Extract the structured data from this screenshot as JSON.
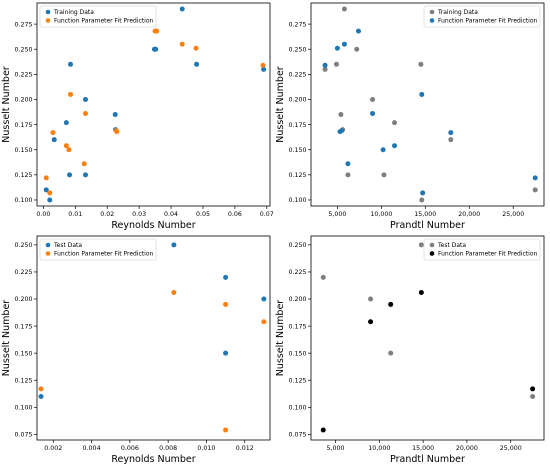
{
  "chart_data": [
    {
      "type": "scatter",
      "xlabel": "Reynolds Number",
      "ylabel": "Nusselt Number",
      "xlim": [
        -0.002,
        0.071
      ],
      "ylim": [
        0.094,
        0.296
      ],
      "xticks": [
        0.0,
        0.01,
        0.02,
        0.03,
        0.04,
        0.05,
        0.06,
        0.07
      ],
      "xtick_labels": [
        "0.00",
        "0.01",
        "0.02",
        "0.03",
        "0.04",
        "0.05",
        "0.06",
        "0.07"
      ],
      "yticks": [
        0.1,
        0.125,
        0.15,
        0.175,
        0.2,
        0.225,
        0.25,
        0.275
      ],
      "ytick_labels": [
        "0.100",
        "0.125",
        "0.150",
        "0.175",
        "0.200",
        "0.225",
        "0.250",
        "0.275"
      ],
      "legend": "top-left",
      "series": [
        {
          "name": "Training Data",
          "color": "#1f77b4",
          "x": [
            0.0009,
            0.002,
            0.0034,
            0.0072,
            0.0082,
            0.0085,
            0.0132,
            0.0132,
            0.0225,
            0.0226,
            0.0348,
            0.0352,
            0.0435,
            0.048,
            0.069
          ],
          "y": [
            0.11,
            0.1,
            0.16,
            0.177,
            0.125,
            0.235,
            0.2,
            0.125,
            0.185,
            0.17,
            0.25,
            0.25,
            0.29,
            0.235,
            0.23
          ]
        },
        {
          "name": "Function Parameter Fit Prediction",
          "color": "#ff7f0e",
          "x": [
            0.0009,
            0.002,
            0.003,
            0.0072,
            0.008,
            0.0085,
            0.0128,
            0.0132,
            0.0228,
            0.023,
            0.035,
            0.0355,
            0.0435,
            0.0478,
            0.0688
          ],
          "y": [
            0.122,
            0.107,
            0.167,
            0.154,
            0.15,
            0.205,
            0.136,
            0.186,
            0.169,
            0.168,
            0.268,
            0.268,
            0.255,
            0.251,
            0.234
          ]
        }
      ]
    },
    {
      "type": "scatter",
      "xlabel": "Prandtl Number",
      "ylabel": "Nusselt Number",
      "xlim": [
        2000,
        28500
      ],
      "ylim": [
        0.094,
        0.296
      ],
      "xticks": [
        5000,
        10000,
        15000,
        20000,
        25000
      ],
      "xtick_labels": [
        "5,000",
        "10,000",
        "15,000",
        "20,000",
        "25,000"
      ],
      "yticks": [
        0.1,
        0.125,
        0.15,
        0.175,
        0.2,
        0.225,
        0.25,
        0.275
      ],
      "ytick_labels": [
        "0.100",
        "0.125",
        "0.150",
        "0.175",
        "0.200",
        "0.225",
        "0.250",
        "0.275"
      ],
      "legend": "top-right",
      "series": [
        {
          "name": "Training Data",
          "color": "#7f7f7f",
          "x": [
            3600,
            4900,
            5400,
            5600,
            5800,
            6200,
            7200,
            9000,
            10300,
            11500,
            14500,
            14600,
            17900,
            27500
          ],
          "y": [
            0.23,
            0.235,
            0.185,
            0.17,
            0.29,
            0.125,
            0.25,
            0.2,
            0.125,
            0.177,
            0.235,
            0.1,
            0.16,
            0.11
          ]
        },
        {
          "name": "Function Parameter Fit Prediction",
          "color": "#1f77b4",
          "x": [
            3600,
            5000,
            5300,
            5500,
            5800,
            6200,
            7400,
            9000,
            10200,
            11500,
            14600,
            14700,
            17900,
            27500
          ],
          "y": [
            0.234,
            0.251,
            0.168,
            0.169,
            0.255,
            0.136,
            0.268,
            0.186,
            0.15,
            0.154,
            0.205,
            0.107,
            0.167,
            0.122
          ]
        }
      ]
    },
    {
      "type": "scatter",
      "xlabel": "Reynolds Number",
      "ylabel": "Nusselt Number",
      "xlim": [
        0.00115,
        0.01332
      ],
      "ylim": [
        0.0698,
        0.2582
      ],
      "xticks": [
        0.002,
        0.004,
        0.006,
        0.008,
        0.01,
        0.012
      ],
      "xtick_labels": [
        "0.002",
        "0.004",
        "0.006",
        "0.008",
        "0.010",
        "0.012"
      ],
      "yticks": [
        0.075,
        0.1,
        0.125,
        0.15,
        0.175,
        0.2,
        0.225,
        0.25
      ],
      "ytick_labels": [
        "0.075",
        "0.100",
        "0.125",
        "0.150",
        "0.175",
        "0.200",
        "0.225",
        "0.250"
      ],
      "legend": "top-left",
      "series": [
        {
          "name": "Test Data",
          "color": "#1f77b4",
          "x": [
            0.00136,
            0.0083,
            0.011,
            0.011,
            0.013
          ],
          "y": [
            0.11,
            0.25,
            0.22,
            0.15,
            0.2
          ]
        },
        {
          "name": "Function Parameter Fit Prediction",
          "color": "#ff7f0e",
          "x": [
            0.00136,
            0.0083,
            0.011,
            0.011,
            0.013
          ],
          "y": [
            0.117,
            0.206,
            0.195,
            0.079,
            0.179
          ]
        }
      ]
    },
    {
      "type": "scatter",
      "xlabel": "Prandtl Number",
      "ylabel": "Nusselt Number",
      "xlim": [
        2200,
        28800
      ],
      "ylim": [
        0.0698,
        0.2582
      ],
      "xticks": [
        5000,
        10000,
        15000,
        20000,
        25000
      ],
      "xtick_labels": [
        "5,000",
        "10,000",
        "15,000",
        "20,000",
        "25,000"
      ],
      "yticks": [
        0.075,
        0.1,
        0.125,
        0.15,
        0.175,
        0.2,
        0.225,
        0.25
      ],
      "ytick_labels": [
        "0.075",
        "0.100",
        "0.125",
        "0.150",
        "0.175",
        "0.200",
        "0.225",
        "0.250"
      ],
      "legend": "top-right",
      "series": [
        {
          "name": "Test Data",
          "color": "#7f7f7f",
          "x": [
            3600,
            9000,
            11300,
            14800,
            27500
          ],
          "y": [
            0.22,
            0.2,
            0.15,
            0.25,
            0.11
          ]
        },
        {
          "name": "Function Parameter Fit Prediction",
          "color": "#000000",
          "x": [
            3600,
            9000,
            11300,
            14800,
            27500
          ],
          "y": [
            0.079,
            0.179,
            0.195,
            0.206,
            0.117
          ]
        }
      ]
    }
  ]
}
